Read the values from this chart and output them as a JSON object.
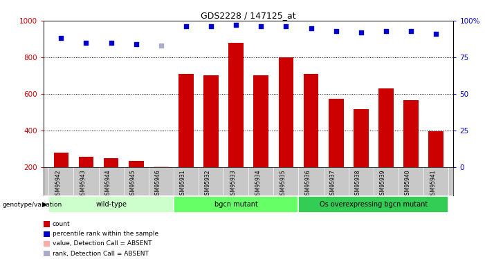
{
  "title": "GDS2228 / 147125_at",
  "samples": [
    "GSM95942",
    "GSM95943",
    "GSM95944",
    "GSM95945",
    "GSM95946",
    "GSM95931",
    "GSM95932",
    "GSM95933",
    "GSM95934",
    "GSM95935",
    "GSM95936",
    "GSM95937",
    "GSM95938",
    "GSM95939",
    "GSM95940",
    "GSM95941"
  ],
  "bar_values": [
    280,
    255,
    248,
    235,
    205,
    710,
    700,
    880,
    700,
    800,
    710,
    575,
    515,
    630,
    565,
    395
  ],
  "bar_absent": [
    false,
    false,
    false,
    false,
    true,
    false,
    false,
    false,
    false,
    false,
    false,
    false,
    false,
    false,
    false,
    false
  ],
  "percentile_values": [
    88,
    85,
    85,
    84,
    83,
    96,
    96,
    97,
    96,
    96,
    95,
    93,
    92,
    93,
    93,
    91
  ],
  "percentile_absent": [
    false,
    false,
    false,
    false,
    true,
    false,
    false,
    false,
    false,
    false,
    false,
    false,
    false,
    false,
    false,
    false
  ],
  "groups": [
    {
      "label": "wild-type",
      "start": 0,
      "end": 5,
      "color": "#ccffcc"
    },
    {
      "label": "bgcn mutant",
      "start": 5,
      "end": 10,
      "color": "#66ff66"
    },
    {
      "label": "Os overexpressing bgcn mutant",
      "start": 10,
      "end": 16,
      "color": "#33cc55"
    }
  ],
  "ylim_left": [
    200,
    1000
  ],
  "ylim_right": [
    0,
    100
  ],
  "yticks_left": [
    200,
    400,
    600,
    800,
    1000
  ],
  "yticks_right": [
    0,
    25,
    50,
    75,
    100
  ],
  "bar_color": "#cc0000",
  "bar_absent_color": "#ffaaaa",
  "dot_color": "#0000cc",
  "dot_absent_color": "#aaaacc",
  "bg_color": "#c8c8c8",
  "grid_color": "#000000",
  "left_label_color": "#cc0000",
  "right_label_color": "#0000cc",
  "legend_items": [
    {
      "label": "count",
      "color": "#cc0000"
    },
    {
      "label": "percentile rank within the sample",
      "color": "#0000cc"
    },
    {
      "label": "value, Detection Call = ABSENT",
      "color": "#ffaaaa"
    },
    {
      "label": "rank, Detection Call = ABSENT",
      "color": "#aaaacc"
    }
  ]
}
